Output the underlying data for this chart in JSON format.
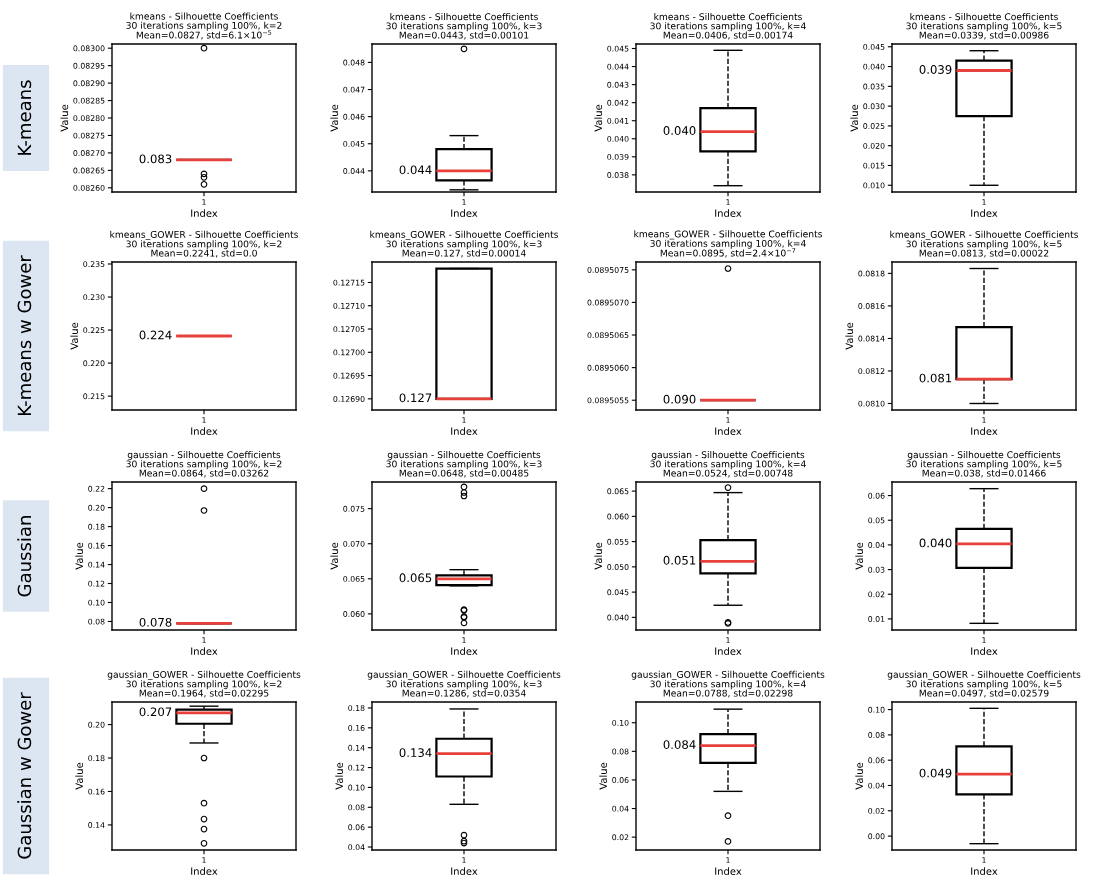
{
  "chart_data": [
    {
      "type": "box",
      "title": "kmeans - Silhouette Coefficients\n30 iterations sampling 100%, k=2\nMean=0.0827, std=6.1×10$^{−5}$",
      "xlabel": "Index",
      "ylabel": "Value",
      "categories": [
        "1"
      ],
      "ylim": [
        0.082588,
        0.083012
      ],
      "yticks": [
        {
          "value": 0.0826,
          "label": "0.08260"
        },
        0.08265,
        {
          "value": 0.0827,
          "label": "0.08270"
        },
        0.08275,
        {
          "value": 0.0828,
          "label": "0.08280"
        },
        0.08285,
        {
          "value": 0.0829,
          "label": "0.08290"
        },
        0.08295,
        {
          "value": 0.083,
          "label": "0.08300"
        }
      ],
      "boxes": [
        {
          "low": 0.08268,
          "q1": 0.08268,
          "median": 0.08268,
          "q3": 0.08268,
          "high": 0.08268,
          "outliers": [
            0.083,
            0.08264,
            0.08263,
            0.08261
          ]
        }
      ],
      "annotations": [
        "K-means",
        {
          "text": "0.083",
          "x": "1",
          "y": 0.08268
        }
      ]
    },
    {
      "type": "box",
      "title": "kmeans - Silhouette Coefficients\n30 iterations sampling 100%, k=3\nMean=0.0443, std=0.00101",
      "xlabel": "Index",
      "ylabel": "Value",
      "categories": [
        "1"
      ],
      "ylim": [
        0.04322,
        0.04868
      ],
      "yticks": [
        0.044,
        0.045,
        0.046,
        0.047,
        0.048
      ],
      "boxes": [
        {
          "low": 0.0433,
          "q1": 0.04365,
          "median": 0.044,
          "q3": 0.0448,
          "high": 0.0453,
          "outliers": [
            0.0485
          ]
        }
      ],
      "annotations": [
        {
          "text": "0.044",
          "x": "1",
          "y": 0.044
        }
      ]
    },
    {
      "type": "box",
      "title": "kmeans - Silhouette Coefficients\n30 iterations sampling 100%, k=4\nMean=0.0406, std=0.00174",
      "xlabel": "Index",
      "ylabel": "Value",
      "categories": [
        "1"
      ],
      "ylim": [
        0.03705,
        0.04525
      ],
      "yticks": [
        0.038,
        0.039,
        {
          "value": 0.04,
          "label": "0.040"
        },
        0.041,
        0.042,
        0.043,
        0.044,
        0.045
      ],
      "boxes": [
        {
          "low": 0.0374,
          "q1": 0.0393,
          "median": 0.0404,
          "q3": 0.0417,
          "high": 0.0449
        }
      ],
      "annotations": [
        {
          "text": "0.040",
          "x": "1",
          "y": 0.0404
        }
      ]
    },
    {
      "type": "box",
      "title": "kmeans - Silhouette Coefficients\n30 iterations sampling 100%, k=5\nMean=0.0339, std=0.00986",
      "xlabel": "Index",
      "ylabel": "Value",
      "categories": [
        "1"
      ],
      "ylim": [
        0.0083,
        0.0457
      ],
      "yticks": [
        {
          "value": 0.01,
          "label": "0.010"
        },
        0.015,
        {
          "value": 0.02,
          "label": "0.020"
        },
        0.025,
        {
          "value": 0.03,
          "label": "0.030"
        },
        0.035,
        {
          "value": 0.04,
          "label": "0.040"
        },
        0.045
      ],
      "boxes": [
        {
          "low": 0.01,
          "q1": 0.0275,
          "median": 0.039,
          "q3": 0.0415,
          "high": 0.044
        }
      ],
      "annotations": [
        {
          "text": "0.039",
          "x": "1",
          "y": 0.039
        }
      ]
    },
    {
      "type": "box",
      "title": "kmeans_GOWER - Silhouette Coefficients\n30 iterations sampling 100%, k=2\nMean=0.2241, std=0.0",
      "xlabel": "Index",
      "ylabel": "Value",
      "categories": [
        "1"
      ],
      "ylim": [
        0.2129,
        0.2353
      ],
      "yticks": [
        0.215,
        {
          "value": 0.22,
          "label": "0.220"
        },
        0.225,
        {
          "value": 0.23,
          "label": "0.230"
        },
        0.235
      ],
      "boxes": [
        {
          "low": 0.2241,
          "q1": 0.2241,
          "median": 0.2241,
          "q3": 0.2241,
          "high": 0.2241
        }
      ],
      "annotations": [
        "K-means w Gower",
        {
          "text": "0.224",
          "x": "1",
          "y": 0.2241
        }
      ]
    },
    {
      "type": "box",
      "title": "kmeans_GOWER - Silhouette Coefficients\n30 iterations sampling 100%, k=3\nMean=0.127, std=0.00014",
      "xlabel": "Index",
      "categories": [
        "1"
      ],
      "ylim": [
        0.126876,
        0.127194
      ],
      "yticks": [
        {
          "value": 0.1269,
          "label": "0.12690"
        },
        0.12695,
        {
          "value": 0.127,
          "label": "0.12700"
        },
        0.12705,
        {
          "value": 0.1271,
          "label": "0.12710"
        },
        0.12715
      ],
      "boxes": [
        {
          "low": 0.1269,
          "q1": 0.1269,
          "median": 0.1269,
          "q3": 0.12718,
          "high": 0.12718
        }
      ],
      "annotations": [
        {
          "text": "0.127",
          "x": "1",
          "y": 0.1269
        }
      ]
    },
    {
      "type": "box",
      "title": "kmeans_GOWER - Silhouette Coefficients\n30 iterations sampling 100%, k=4\nMean=0.0895, std=2.4×10$^{−7}$",
      "xlabel": "Index",
      "categories": [
        "1"
      ],
      "ylim": [
        0.08950535,
        0.08950762
      ],
      "yticks": [
        0.0895055,
        {
          "value": 0.089506,
          "label": "0.0895060"
        },
        0.0895065,
        {
          "value": 0.089507,
          "label": "0.0895070"
        },
        0.0895075
      ],
      "boxes": [
        {
          "low": 0.0895055,
          "q1": 0.0895055,
          "median": 0.0895055,
          "q3": 0.0895055,
          "high": 0.0895055,
          "outliers": [
            0.08950752
          ]
        }
      ],
      "annotations": [
        {
          "text": "0.090",
          "x": "1",
          "y": 0.0895055
        }
      ]
    },
    {
      "type": "box",
      "title": "kmeans_GOWER - Silhouette Coefficients\n30 iterations sampling 100%, k=5\nMean=0.0813, std=0.00022",
      "xlabel": "Index",
      "ylabel": "Value",
      "categories": [
        "1"
      ],
      "ylim": [
        0.08096,
        0.08187
      ],
      "yticks": [
        {
          "value": 0.081,
          "label": "0.0810"
        },
        0.0812,
        0.0814,
        0.0816,
        0.0818
      ],
      "boxes": [
        {
          "low": 0.081,
          "q1": 0.08115,
          "median": 0.08115,
          "q3": 0.08147,
          "high": 0.08183
        }
      ],
      "annotations": [
        {
          "text": "0.081",
          "x": "1",
          "y": 0.08115
        }
      ]
    },
    {
      "type": "box",
      "title": "gaussian - Silhouette Coefficients\n30 iterations sampling 100%, k=2\nMean=0.0864, std=0.03262",
      "xlabel": "Index",
      "ylabel": "Value",
      "categories": [
        "1"
      ],
      "ylim": [
        0.071,
        0.227
      ],
      "yticks": [
        {
          "value": 0.08,
          "label": "0.08"
        },
        {
          "value": 0.1,
          "label": "0.10"
        },
        0.12,
        0.14,
        0.16,
        0.18,
        {
          "value": 0.2,
          "label": "0.20"
        },
        0.22
      ],
      "boxes": [
        {
          "low": 0.078,
          "q1": 0.078,
          "median": 0.078,
          "q3": 0.078,
          "high": 0.078,
          "outliers": [
            0.22,
            0.197
          ]
        }
      ],
      "annotations": [
        "Gaussian",
        {
          "text": "0.078",
          "x": "1",
          "y": 0.078
        }
      ]
    },
    {
      "type": "box",
      "title": "gaussian - Silhouette Coefficients\n30 iterations sampling 100%, k=3\nMean=0.0648, std=0.00485",
      "xlabel": "Index",
      "ylabel": "Value",
      "categories": [
        "1"
      ],
      "ylim": [
        0.0577,
        0.0788
      ],
      "yticks": [
        {
          "value": 0.06,
          "label": "0.060"
        },
        0.065,
        {
          "value": 0.07,
          "label": "0.070"
        },
        0.075
      ],
      "boxes": [
        {
          "low": 0.064,
          "q1": 0.0641,
          "median": 0.065,
          "q3": 0.0655,
          "high": 0.0663,
          "outliers": [
            0.0606,
            0.0605,
            0.0596,
            0.0595,
            0.0587,
            0.0781,
            0.0773,
            0.0768
          ]
        }
      ],
      "annotations": [
        {
          "text": "0.065",
          "x": "1",
          "y": 0.065
        }
      ]
    },
    {
      "type": "box",
      "title": "gaussian - Silhouette Coefficients\n30 iterations sampling 100%, k=4\nMean=0.0524, std=0.00748",
      "xlabel": "Index",
      "ylabel": "Value",
      "categories": [
        "1"
      ],
      "ylim": [
        0.0375,
        0.0668
      ],
      "yticks": [
        {
          "value": 0.04,
          "label": "0.040"
        },
        0.045,
        {
          "value": 0.05,
          "label": "0.050"
        },
        0.055,
        {
          "value": 0.06,
          "label": "0.060"
        },
        0.065
      ],
      "boxes": [
        {
          "low": 0.0424,
          "q1": 0.0487,
          "median": 0.0511,
          "q3": 0.0553,
          "high": 0.0647,
          "outliers": [
            0.0657,
            0.039,
            0.0388
          ]
        }
      ],
      "annotations": [
        {
          "text": "0.051",
          "x": "1",
          "y": 0.0511
        }
      ]
    },
    {
      "type": "box",
      "title": "gaussian - Silhouette Coefficients\n30 iterations sampling 100%, k=5\nMean=0.038, std=0.01466",
      "xlabel": "Index",
      "ylabel": "Value",
      "categories": [
        "1"
      ],
      "ylim": [
        0.0055,
        0.0655
      ],
      "yticks": [
        0.01,
        0.02,
        0.03,
        0.04,
        0.05,
        0.06
      ],
      "boxes": [
        {
          "low": 0.0082,
          "q1": 0.0307,
          "median": 0.0404,
          "q3": 0.0465,
          "high": 0.0628
        }
      ],
      "annotations": [
        {
          "text": "0.040",
          "x": "1",
          "y": 0.0404
        }
      ]
    },
    {
      "type": "box",
      "title": "gaussian_GOWER - Silhouette Coefficients\n30 iterations sampling 100%, k=2\nMean=0.1964, std=0.02295",
      "xlabel": "Index",
      "ylabel": "Value",
      "categories": [
        "1"
      ],
      "ylim": [
        0.125,
        0.2135
      ],
      "yticks": [
        0.14,
        0.16,
        0.18,
        {
          "value": 0.2,
          "label": "0.20"
        }
      ],
      "boxes": [
        {
          "low": 0.189,
          "q1": 0.2005,
          "median": 0.207,
          "q3": 0.209,
          "high": 0.211,
          "outliers": [
            0.18,
            0.153,
            0.1435,
            0.1375,
            0.129
          ]
        }
      ],
      "annotations": [
        "Gaussian w Gower",
        {
          "text": "0.207",
          "x": "1",
          "y": 0.207
        }
      ]
    },
    {
      "type": "box",
      "title": "gaussian_GOWER - Silhouette Coefficients\n30 iterations sampling 100%, k=3\nMean=0.1286, std=0.0354",
      "xlabel": "Index",
      "ylabel": "Value",
      "categories": [
        "1"
      ],
      "ylim": [
        0.037,
        0.186
      ],
      "yticks": [
        0.04,
        0.06,
        0.08,
        {
          "value": 0.1,
          "label": "0.10"
        },
        0.12,
        0.14,
        0.16,
        0.18
      ],
      "boxes": [
        {
          "low": 0.083,
          "q1": 0.111,
          "median": 0.134,
          "q3": 0.149,
          "high": 0.179,
          "outliers": [
            0.052,
            0.046,
            0.044
          ]
        }
      ],
      "annotations": [
        {
          "text": "0.134",
          "x": "1",
          "y": 0.134
        }
      ]
    },
    {
      "type": "box",
      "title": "gaussian_GOWER - Silhouette Coefficients\n30 iterations sampling 100%, k=4\nMean=0.0788, std=0.02298",
      "xlabel": "Index",
      "ylabel": "Value",
      "categories": [
        "1"
      ],
      "ylim": [
        0.011,
        0.1145
      ],
      "yticks": [
        0.02,
        0.04,
        0.06,
        0.08,
        {
          "value": 0.1,
          "label": "0.10"
        }
      ],
      "boxes": [
        {
          "low": 0.052,
          "q1": 0.072,
          "median": 0.084,
          "q3": 0.092,
          "high": 0.1095,
          "outliers": [
            0.035,
            0.017
          ]
        }
      ],
      "annotations": [
        {
          "text": "0.084",
          "x": "1",
          "y": 0.084
        }
      ]
    },
    {
      "type": "box",
      "title": "gaussian_GOWER - Silhouette Coefficients\n30 iterations sampling 100%, k=5\nMean=0.0497, std=0.02579",
      "xlabel": "Index",
      "ylabel": "Value",
      "categories": [
        "1"
      ],
      "ylim": [
        -0.011,
        0.106
      ],
      "yticks": [
        {
          "value": 0,
          "label": "0.00"
        },
        0.02,
        0.04,
        0.06,
        0.08,
        {
          "value": 0.1,
          "label": "0.10"
        }
      ],
      "boxes": [
        {
          "low": -0.006,
          "q1": 0.033,
          "median": 0.049,
          "q3": 0.071,
          "high": 0.101
        }
      ],
      "annotations": [
        {
          "text": "0.049",
          "x": "1",
          "y": 0.049
        }
      ]
    }
  ]
}
